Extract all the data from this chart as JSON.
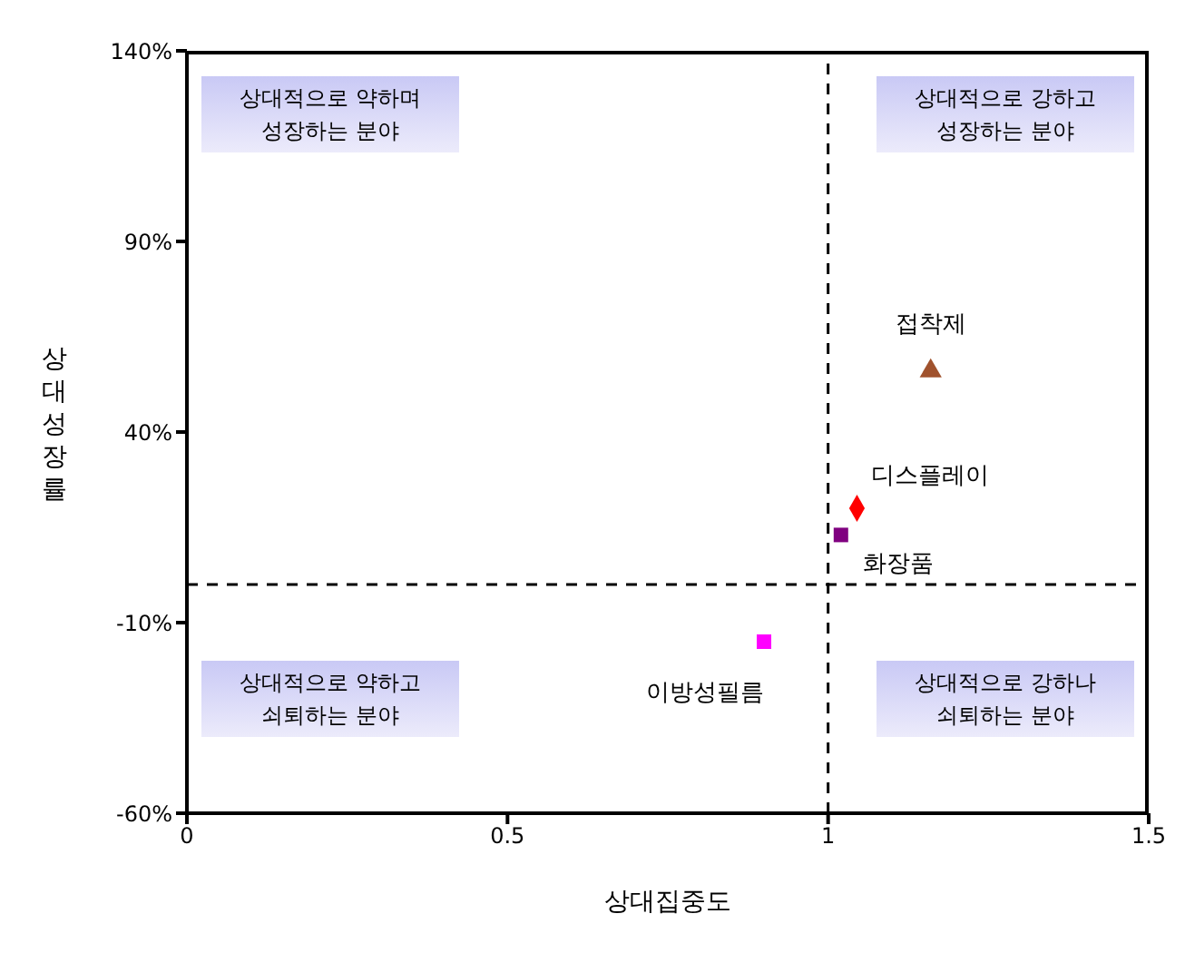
{
  "chart_data": {
    "type": "scatter",
    "xlabel": "상대집중도",
    "ylabel": "상대성장률",
    "xlim": [
      0,
      1.5
    ],
    "xticks": [
      0,
      0.5,
      1,
      1.5
    ],
    "ylim": [
      -60,
      140
    ],
    "yticks": [
      {
        "value": -60,
        "label": "-60%"
      },
      {
        "value": -10,
        "label": "-10%"
      },
      {
        "value": 40,
        "label": "40%"
      },
      {
        "value": 90,
        "label": "90%"
      },
      {
        "value": 140,
        "label": "140%"
      }
    ],
    "grid": false,
    "series": [
      {
        "name": "접착제",
        "color": "#a0522d",
        "marker": "triangle",
        "x": [
          1.16
        ],
        "values": [
          56
        ]
      },
      {
        "name": "디스플레이",
        "color": "#ff0000",
        "marker": "diamond",
        "x": [
          1.045
        ],
        "values": [
          20
        ]
      },
      {
        "name": "화장품",
        "color": "#800080",
        "marker": "square",
        "x": [
          1.02
        ],
        "values": [
          13
        ]
      },
      {
        "name": "이방성필름",
        "color": "#ff00ff",
        "marker": "square",
        "x": [
          0.9
        ],
        "values": [
          -15
        ]
      }
    ],
    "ref_lines": [
      {
        "axis": "x",
        "value": 1,
        "line_style": "dashed",
        "color": "#000000"
      },
      {
        "axis": "y",
        "value": 0,
        "line_style": "dashed",
        "color": "#000000"
      }
    ],
    "annotations": [
      "상대적으로 약하며 성장하는 분야",
      "상대적으로 강하고 성장하는 분야",
      "상대적으로 약하고 쇠퇴하는 분야",
      "상대적으로 강하나 쇠퇴하는 분야"
    ]
  }
}
